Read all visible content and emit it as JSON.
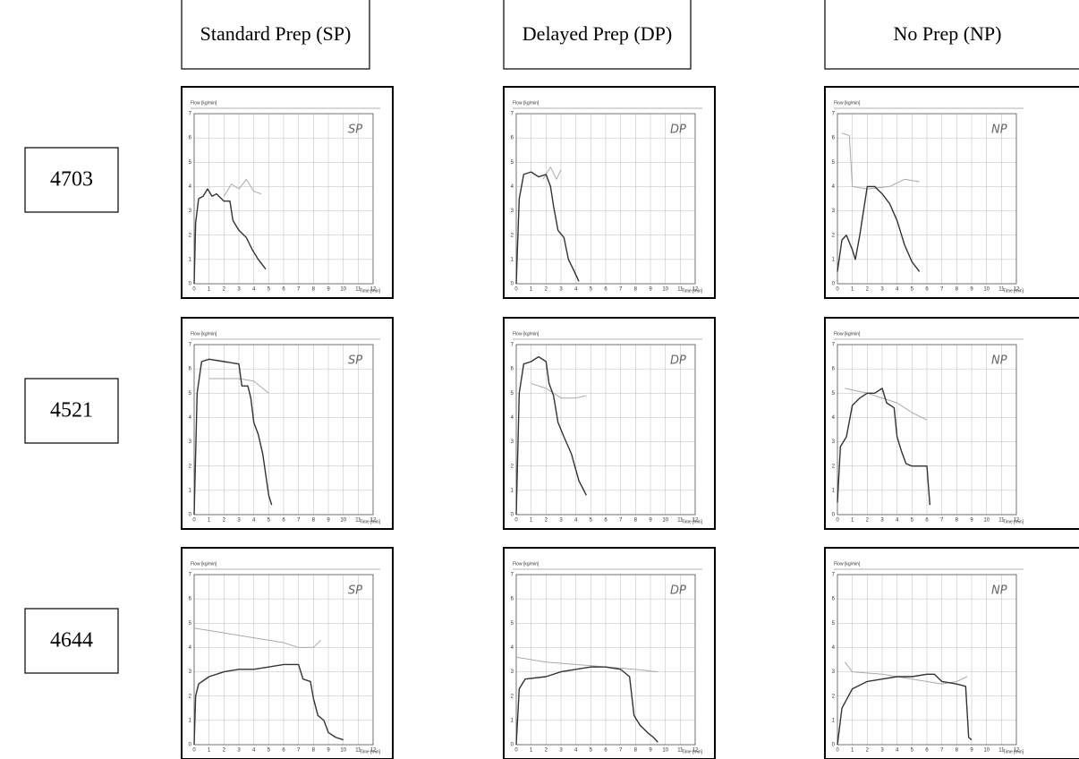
{
  "columns": [
    "Standard Prep (SP)",
    "Delayed Prep (DP)",
    "No Prep (NP)"
  ],
  "axis": {
    "xlabel": "Time [min]",
    "ylabel": "Flow [kg/min]",
    "xlim": [
      0,
      12
    ],
    "xticks": [
      0,
      1,
      2,
      3,
      4,
      5,
      6,
      7,
      8,
      9,
      10,
      11,
      12
    ],
    "ylim": [
      0,
      7
    ],
    "yticks": [
      0,
      1,
      2,
      3,
      4,
      5,
      6,
      7
    ]
  },
  "rows": [
    {
      "label": "4703",
      "panels": [
        {
          "note": "SP",
          "time": [
            0,
            0.1,
            0.3,
            0.6,
            0.9,
            1.2,
            1.5,
            2,
            2.4,
            2.6,
            3,
            3.5,
            3.9,
            4.3,
            4.8
          ],
          "flow": [
            0,
            2.5,
            3.5,
            3.6,
            3.9,
            3.6,
            3.7,
            3.4,
            3.4,
            2.6,
            2.2,
            1.9,
            1.4,
            1.0,
            0.6
          ],
          "cond_time": [
            2,
            2.5,
            3,
            3.5,
            4,
            4.5
          ],
          "cond": [
            3.6,
            4.1,
            3.9,
            4.3,
            3.8,
            3.7
          ]
        },
        {
          "note": "DP",
          "time": [
            0,
            0.2,
            0.5,
            1,
            1.5,
            2,
            2.3,
            2.5,
            2.8,
            3.2,
            3.5,
            3.9,
            4.2
          ],
          "flow": [
            0,
            3.5,
            4.5,
            4.6,
            4.4,
            4.5,
            4.0,
            3.2,
            2.2,
            1.9,
            1.0,
            0.5,
            0.1
          ],
          "cond_time": [
            1.8,
            2.3,
            2.7,
            3
          ],
          "cond": [
            4.3,
            4.8,
            4.3,
            4.7
          ]
        },
        {
          "note": "NP",
          "time": [
            0,
            0.3,
            0.6,
            1.0,
            1.2,
            1.5,
            1.8,
            2,
            2.5,
            3,
            3.5,
            4,
            4.5,
            5,
            5.5
          ],
          "flow": [
            0.5,
            1.8,
            2.0,
            1.4,
            1.0,
            2.0,
            3.2,
            4.0,
            4.0,
            3.7,
            3.3,
            2.6,
            1.6,
            0.9,
            0.5
          ],
          "cond_time": [
            0.3,
            0.8,
            1.0,
            2,
            3.5,
            4.5,
            5.5
          ],
          "cond": [
            6.2,
            6.1,
            4.0,
            3.9,
            4.0,
            4.3,
            4.2
          ]
        }
      ]
    },
    {
      "label": "4521",
      "panels": [
        {
          "note": "SP",
          "time": [
            0,
            0.2,
            0.5,
            1,
            2,
            3,
            3.2,
            3.6,
            3.8,
            4,
            4.3,
            4.6,
            5,
            5.2
          ],
          "flow": [
            0,
            5,
            6.3,
            6.4,
            6.3,
            6.2,
            5.3,
            5.3,
            4.8,
            3.8,
            3.3,
            2.5,
            0.8,
            0.4
          ],
          "cond_time": [
            1,
            2,
            3,
            4,
            5
          ],
          "cond": [
            5.6,
            5.6,
            5.6,
            5.5,
            5.0
          ]
        },
        {
          "note": "DP",
          "time": [
            0,
            0.2,
            0.5,
            1,
            1.5,
            2,
            2.2,
            2.5,
            2.8,
            3.2,
            3.7,
            4.2,
            4.7
          ],
          "flow": [
            0,
            5,
            6.2,
            6.3,
            6.5,
            6.3,
            5.4,
            4.9,
            3.8,
            3.2,
            2.5,
            1.4,
            0.8
          ],
          "cond_time": [
            1,
            2,
            3,
            4,
            4.7
          ],
          "cond": [
            5.4,
            5.2,
            4.8,
            4.8,
            4.9
          ]
        },
        {
          "note": "NP",
          "time": [
            0,
            0.2,
            0.6,
            1,
            1.5,
            2,
            2.5,
            3,
            3.3,
            3.8,
            4,
            4.3,
            4.6,
            5,
            5.5,
            6,
            6.2
          ],
          "flow": [
            0.5,
            2.8,
            3.2,
            4.5,
            4.8,
            5.0,
            5.0,
            5.2,
            4.6,
            4.4,
            3.2,
            2.6,
            2.1,
            2.0,
            2.0,
            2.0,
            0.4
          ],
          "cond_time": [
            0.5,
            2,
            3,
            4,
            5,
            6
          ],
          "cond": [
            5.2,
            5.0,
            4.8,
            4.6,
            4.2,
            3.9
          ]
        }
      ]
    },
    {
      "label": "4644",
      "panels": [
        {
          "note": "SP",
          "time": [
            0,
            0.1,
            0.3,
            1,
            2,
            3,
            4,
            5,
            6,
            7,
            7.3,
            7.8,
            8,
            8.3,
            8.7,
            9,
            9.5,
            10
          ],
          "flow": [
            0,
            2,
            2.5,
            2.8,
            3.0,
            3.1,
            3.1,
            3.2,
            3.3,
            3.3,
            2.7,
            2.6,
            1.9,
            1.2,
            1.0,
            0.5,
            0.3,
            0.2
          ],
          "cond_time": [
            0,
            2,
            4,
            6,
            7,
            8,
            8.5
          ],
          "cond": [
            4.8,
            4.6,
            4.4,
            4.2,
            4.0,
            4.0,
            4.3
          ]
        },
        {
          "note": "DP",
          "time": [
            0,
            0.2,
            0.6,
            2,
            3,
            4,
            5,
            6,
            7,
            7.6,
            7.9,
            8.3,
            8.8,
            9.2,
            9.5
          ],
          "flow": [
            0,
            2.3,
            2.7,
            2.8,
            3.0,
            3.1,
            3.2,
            3.2,
            3.1,
            2.8,
            1.2,
            0.8,
            0.5,
            0.3,
            0.1
          ],
          "cond_time": [
            0,
            2,
            4,
            6,
            8,
            9.5
          ],
          "cond": [
            3.6,
            3.4,
            3.3,
            3.2,
            3.1,
            3.0
          ]
        },
        {
          "note": "NP",
          "time": [
            0,
            0.3,
            1,
            2,
            3,
            4,
            5,
            6,
            6.5,
            7,
            8,
            8.6,
            8.8,
            9
          ],
          "flow": [
            0,
            1.5,
            2.3,
            2.6,
            2.7,
            2.8,
            2.8,
            2.9,
            2.9,
            2.6,
            2.5,
            2.4,
            0.3,
            0.2
          ],
          "cond_time": [
            0.5,
            1,
            3,
            5,
            7,
            8,
            8.7
          ],
          "cond": [
            3.4,
            3.0,
            2.9,
            2.7,
            2.5,
            2.6,
            2.8
          ]
        }
      ]
    }
  ]
}
